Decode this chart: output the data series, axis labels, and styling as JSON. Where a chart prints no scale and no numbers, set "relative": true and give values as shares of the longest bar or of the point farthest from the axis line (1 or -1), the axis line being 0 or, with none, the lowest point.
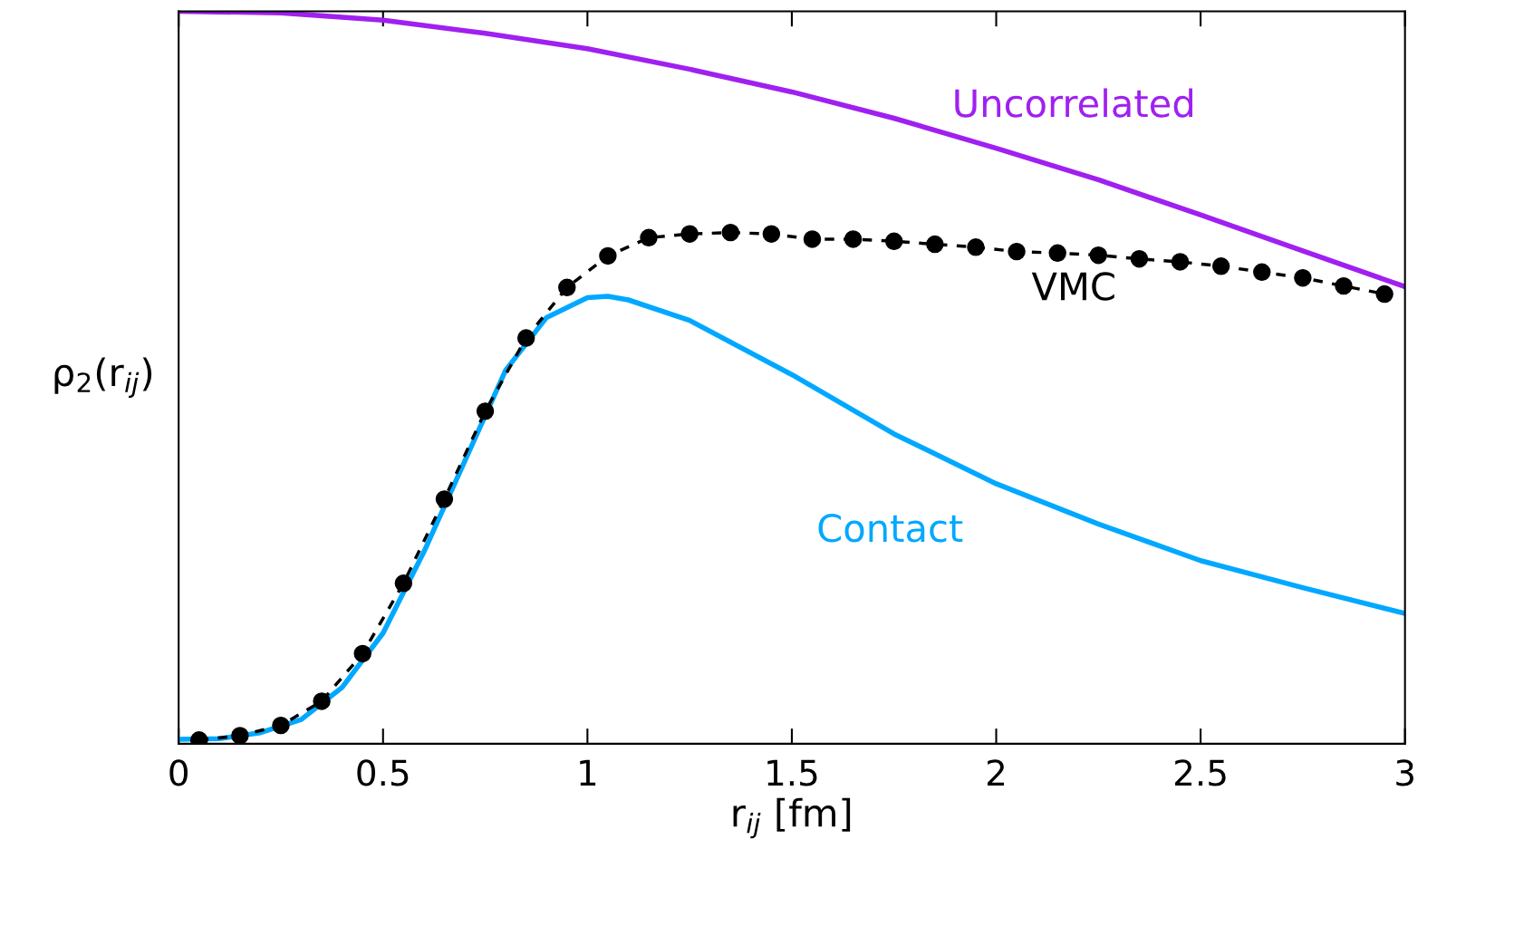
{
  "chart_data": {
    "type": "line",
    "relative": true,
    "xlabel": "r$_{ij}$ [fm]",
    "ylabel": "ρ$_{2}$(r$_{ij}$)",
    "xlim": [
      0,
      3
    ],
    "xticks": [
      0,
      0.5,
      1,
      1.5,
      2,
      2.5,
      3
    ],
    "grid": false,
    "legend": false,
    "tick_labels": "x",
    "series": [
      {
        "name": "Uncorrelated",
        "color": "#a020f0",
        "marker": "none",
        "line_style": "solid",
        "x": [
          0,
          0.25,
          0.5,
          0.75,
          1.0,
          1.25,
          1.5,
          1.75,
          2.0,
          2.25,
          2.5,
          2.75,
          3.0
        ],
        "values": [
          1.0,
          0.998,
          0.988,
          0.97,
          0.949,
          0.921,
          0.89,
          0.854,
          0.813,
          0.77,
          0.722,
          0.673,
          0.624
        ]
      },
      {
        "name": "VMC",
        "color": "#000000",
        "marker": "circle",
        "line_style": "dashed",
        "x": [
          0.05,
          0.15,
          0.25,
          0.35,
          0.45,
          0.55,
          0.65,
          0.75,
          0.85,
          0.95,
          1.05,
          1.15,
          1.25,
          1.35,
          1.45,
          1.55,
          1.65,
          1.75,
          1.85,
          1.95,
          2.05,
          2.15,
          2.25,
          2.35,
          2.45,
          2.55,
          2.65,
          2.75,
          2.85,
          2.95
        ],
        "values": [
          0.005,
          0.011,
          0.025,
          0.058,
          0.123,
          0.219,
          0.334,
          0.454,
          0.554,
          0.623,
          0.666,
          0.691,
          0.696,
          0.698,
          0.696,
          0.689,
          0.689,
          0.686,
          0.682,
          0.678,
          0.672,
          0.67,
          0.667,
          0.662,
          0.658,
          0.652,
          0.644,
          0.636,
          0.625,
          0.614
        ]
      },
      {
        "name": "Contact",
        "color": "#00a8ff",
        "marker": "none",
        "line_style": "solid",
        "x": [
          0,
          0.1,
          0.2,
          0.3,
          0.4,
          0.5,
          0.6,
          0.7,
          0.8,
          0.9,
          1.0,
          1.05,
          1.1,
          1.25,
          1.5,
          1.75,
          2.0,
          2.25,
          2.5,
          2.75,
          3.0
        ],
        "values": [
          0.006,
          0.007,
          0.015,
          0.033,
          0.077,
          0.151,
          0.262,
          0.386,
          0.51,
          0.582,
          0.609,
          0.611,
          0.606,
          0.578,
          0.504,
          0.423,
          0.355,
          0.3,
          0.25,
          0.213,
          0.178
        ]
      }
    ]
  }
}
